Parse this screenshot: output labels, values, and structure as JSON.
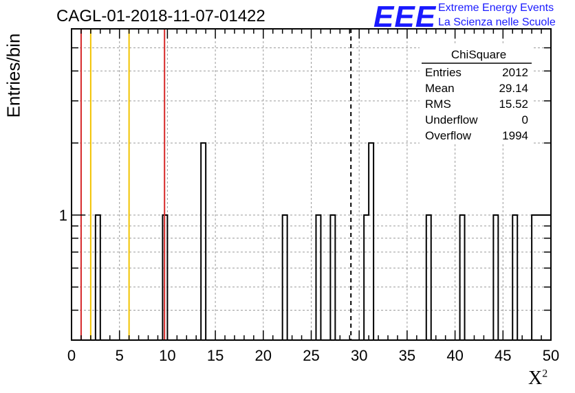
{
  "header": {
    "title": "CAGL-01-2018-11-07-01422",
    "logo_text": "EEE",
    "logo_line1": "Extreme Energy Events",
    "logo_line2": "La Scienza nelle Scuole"
  },
  "colors": {
    "histogram": "#000000",
    "red_line": "#d62728",
    "yellow_line": "#f2c300",
    "grid": "#9a9a9a",
    "logo": "#1a1aff"
  },
  "stats": {
    "title": "ChiSquare",
    "rows": [
      {
        "label": "Entries",
        "value": "2012"
      },
      {
        "label": "Mean",
        "value": "29.14"
      },
      {
        "label": "RMS",
        "value": "15.52"
      },
      {
        "label": "Underflow",
        "value": "0"
      },
      {
        "label": "Overflow",
        "value": "1994"
      }
    ]
  },
  "chart_data": {
    "type": "bar",
    "title": "CAGL-01-2018-11-07-01422",
    "xlabel": "X",
    "xlabel_sup": "2",
    "ylabel": "Entries/bin",
    "xlim": [
      0,
      50
    ],
    "ylim": [
      0.3,
      6
    ],
    "yscale": "log",
    "grid": true,
    "x_ticks": [
      0,
      5,
      10,
      15,
      20,
      25,
      30,
      35,
      40,
      45,
      50
    ],
    "x_tick_labels": [
      "0",
      "5",
      "10",
      "15",
      "20",
      "25",
      "30",
      "35",
      "40",
      "45",
      "50"
    ],
    "y_tick_labels": [
      {
        "value": 1,
        "label": "1"
      }
    ],
    "bin_width": 0.5,
    "bins": [
      {
        "x": 2.5,
        "count": 1
      },
      {
        "x": 9.5,
        "count": 1
      },
      {
        "x": 13.5,
        "count": 2
      },
      {
        "x": 22.0,
        "count": 1
      },
      {
        "x": 25.5,
        "count": 1
      },
      {
        "x": 27.0,
        "count": 1
      },
      {
        "x": 30.5,
        "count": 1
      },
      {
        "x": 31.0,
        "count": 2
      },
      {
        "x": 37.0,
        "count": 1
      },
      {
        "x": 40.5,
        "count": 1
      },
      {
        "x": 44.0,
        "count": 1
      },
      {
        "x": 46.0,
        "count": 1
      },
      {
        "x": 48.0,
        "count": 1
      },
      {
        "x": 48.5,
        "count": 1
      },
      {
        "x": 49.0,
        "count": 1
      },
      {
        "x": 49.5,
        "count": 1
      }
    ],
    "vertical_lines": [
      {
        "x": 1.0,
        "color": "red",
        "style": "solid"
      },
      {
        "x": 2.0,
        "color": "yellow",
        "style": "solid"
      },
      {
        "x": 6.0,
        "color": "yellow",
        "style": "solid"
      },
      {
        "x": 9.7,
        "color": "red",
        "style": "solid"
      },
      {
        "x": 29.14,
        "color": "black",
        "style": "dashed"
      }
    ]
  }
}
